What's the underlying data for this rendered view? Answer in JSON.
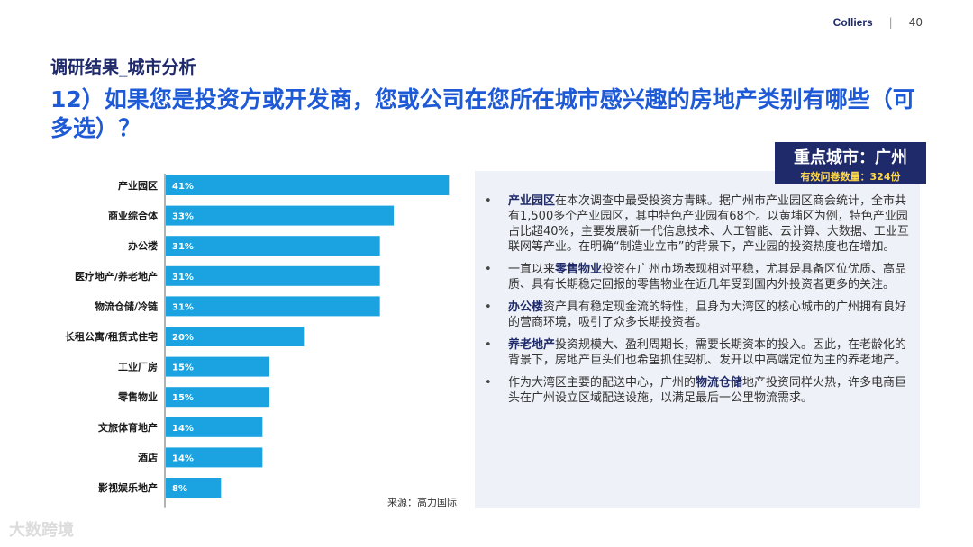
{
  "header": {
    "brand": "Colliers",
    "page": "40"
  },
  "section_title": "调研结果_城市分析",
  "question": "12）如果您是投资方或开发商，您或公司在您所在城市感兴趣的房地产类别有哪些（可多选）？",
  "city_box": {
    "title": "重点城市：广州",
    "subtitle": "有效问卷数量：324份"
  },
  "bullets": [
    {
      "keyword": "产业园区",
      "pre": "",
      "post": "在本次调查中最受投资方青睐。据广州市产业园区商会统计，全市共有1,500多个产业园区，其中特色产业园有68个。以黄埔区为例，特色产业园占比超40%，主要发展新一代信息技术、人工智能、云计算、大数据、工业互联网等产业。在明确“制造业立市”的背景下，产业园的投资热度也在增加。"
    },
    {
      "keyword": "零售物业",
      "pre": "一直以来",
      "post": "投资在广州市场表现相对平稳，尤其是具备区位优质、高品质、具有长期稳定回报的零售物业在近几年受到国内外投资者更多的关注。"
    },
    {
      "keyword": "办公楼",
      "pre": "",
      "post": "资产具有稳定现金流的特性，且身为大湾区的核心城市的广州拥有良好的营商环境，吸引了众多长期投资者。"
    },
    {
      "keyword": "养老地产",
      "pre": "",
      "post": "投资规模大、盈利周期长，需要长期资本的投入。因此，在老龄化的背景下，房地产巨头们也希望抓住契机、发开以中高端定位为主的养老地产。"
    },
    {
      "keyword": "物流仓储",
      "pre": "作为大湾区主要的配送中心，广州的",
      "post": "地产投资同样火热，许多电商巨头在广州设立区域配送设施，以满足最后一公里物流需求。"
    }
  ],
  "source": "来源：高力国际",
  "watermark": "大数跨境",
  "chart_data": {
    "type": "bar",
    "orientation": "horizontal",
    "categories": [
      "产业园区",
      "商业综合体",
      "办公楼",
      "医疗地产/养老地产",
      "物流仓储/冷链",
      "长租公寓/租赁式住宅",
      "工业厂房",
      "零售物业",
      "文旅体育地产",
      "酒店",
      "影视娱乐地产"
    ],
    "values": [
      41,
      33,
      31,
      31,
      31,
      20,
      15,
      15,
      14,
      14,
      8
    ],
    "value_labels": [
      "41%",
      "33%",
      "31%",
      "31%",
      "31%",
      "20%",
      "15%",
      "15%",
      "14%",
      "14%",
      "8%"
    ],
    "unit": "%",
    "xlim": [
      0,
      42
    ],
    "bar_color": "#1aa3e0",
    "grid": false
  }
}
